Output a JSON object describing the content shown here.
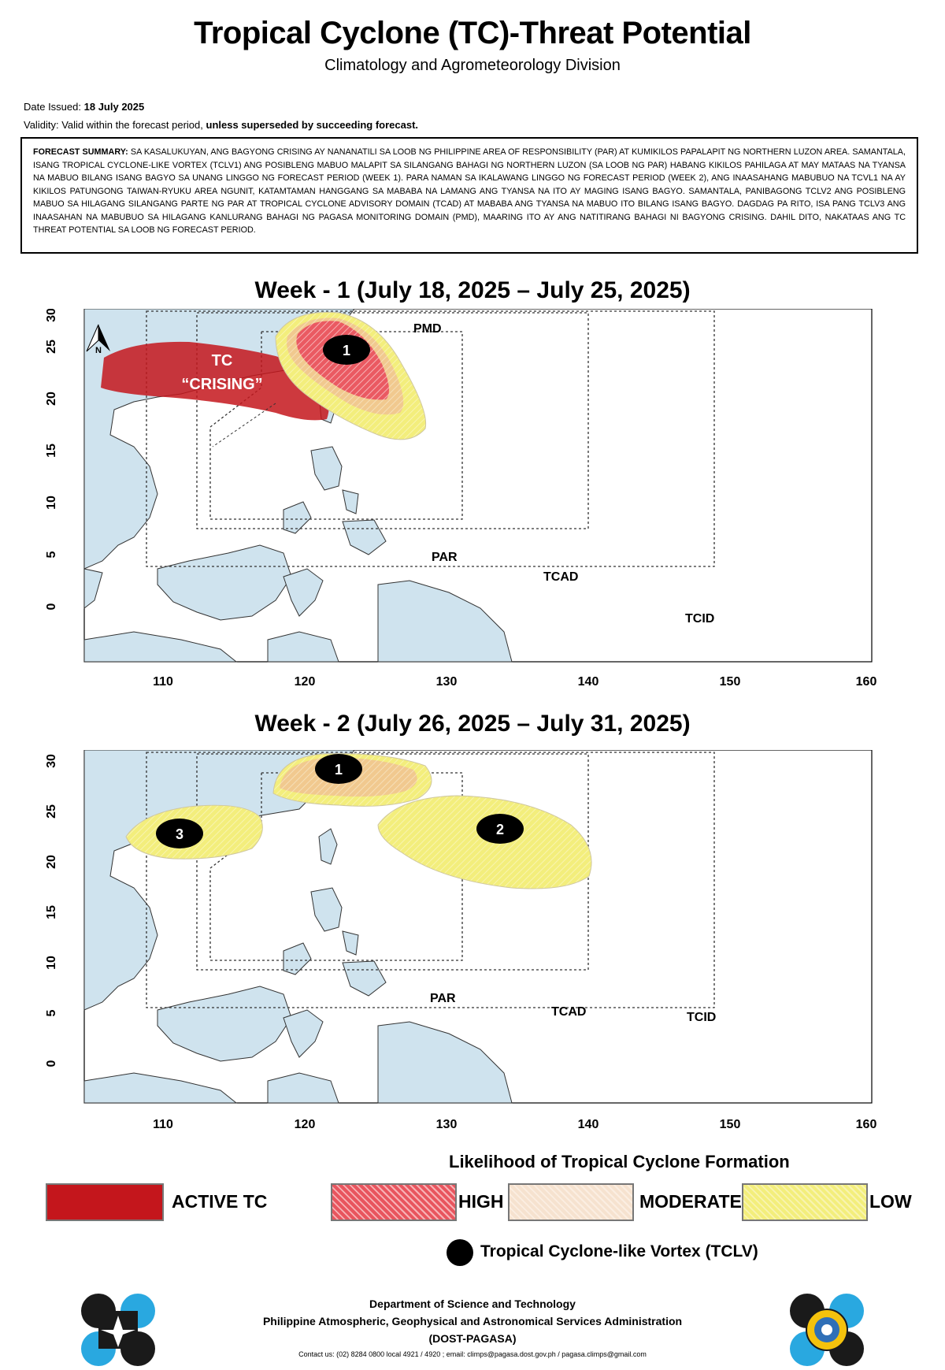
{
  "header": {
    "title": "Tropical Cyclone (TC)-Threat Potential",
    "subtitle": "Climatology and Agrometeorology Division"
  },
  "issue": {
    "date_label": "Date Issued:",
    "date_value": "18 July 2025",
    "validity_label": "Validity:",
    "validity_text": "Valid within the forecast period,",
    "validity_bold": "unless superseded by succeeding forecast."
  },
  "summary": {
    "label": "FORECAST SUMMARY:",
    "text": "SA KASALUKUYAN, ANG BAGYONG CRISING AY NANANATILI SA LOOB NG PHILIPPINE AREA OF RESPONSIBILITY (PAR) AT KUMIKILOS PAPALAPIT NG NORTHERN LUZON AREA. SAMANTALA, ISANG TROPICAL CYCLONE-LIKE VORTEX (TCLV1) ANG POSIBLENG MABUO MALAPIT SA SILANGANG BAHAGI NG NORTHERN LUZON (SA LOOB NG PAR) HABANG KIKILOS PAHILAGA AT MAY MATAAS NA TYANSA NA MABUO BILANG ISANG BAGYO SA UNANG LINGGO NG FORECAST PERIOD (WEEK 1). PARA NAMAN SA IKALAWANG LINGGO NG FORECAST PERIOD (WEEK 2), ANG INAASAHANG MABUBUO NA TCVL1 NA AY KIKILOS PATUNGONG TAIWAN-RYUKU AREA NGUNIT, KATAMTAMAN HANGGANG SA MABABA NA LAMANG ANG TYANSA NA ITO AY MAGING ISANG BAGYO. SAMANTALA, PANIBAGONG TCLV2 ANG POSIBLENG MABUO SA HILAGANG SILANGANG PARTE NG PAR AT TROPICAL CYCLONE ADVISORY DOMAIN (TCAD) AT MABABA ANG TYANSA NA MABUO ITO BILANG ISANG BAGYO. DAGDAG PA RITO, ISA PANG TCLV3 ANG INAASAHAN NA MABUBUO SA HILAGANG KANLURANG BAHAGI NG PAGASA MONITORING DOMAIN (PMD), MAARING ITO AY ANG NATITIRANG BAHAGI NI BAGYONG CRISING. DAHIL DITO, NAKATAAS ANG TC THREAT POTENTIAL SA LOOB NG FORECAST PERIOD."
  },
  "map_axes": {
    "x_ticks": [
      "110",
      "120",
      "130",
      "140",
      "150",
      "160"
    ],
    "y_ticks": [
      "0",
      "5",
      "10",
      "15",
      "20",
      "25",
      "30"
    ],
    "domains": {
      "pmd": "PMD",
      "par": "PAR",
      "tcad": "TCAD",
      "tcid": "TCID"
    },
    "north_label": "N"
  },
  "week1": {
    "title": "Week - 1 (July 18, 2025 – July 25, 2025)",
    "active_tc_label_1": "TC",
    "active_tc_label_2": "“CRISING”",
    "tclv": [
      "1"
    ]
  },
  "week2": {
    "title": "Week - 2 (July 26, 2025 – July 31, 2025)",
    "tclv": [
      "1",
      "2",
      "3"
    ]
  },
  "legend": {
    "title": "Likelihood of Tropical Cyclone Formation",
    "items": [
      {
        "label": "ACTIVE TC",
        "color": "#c4161c"
      },
      {
        "label": "HIGH",
        "color": "#e8555e"
      },
      {
        "label": "MODERATE",
        "color": "#f6e2cf"
      },
      {
        "label": "LOW",
        "color": "#f3ee7c"
      }
    ],
    "tclv_label": "Tropical Cyclone-like Vortex (TCLV)"
  },
  "footer": {
    "line1": "Department of Science and Technology",
    "line2": "Philippine Atmospheric, Geophysical and Astronomical Services Administration",
    "line3": "(DOST-PAGASA)",
    "contact": "Contact us: (02) 8284 0800 local 4921 / 4920 ; email: climps@pagasa.dost.gov.ph / pagasa.climps@gmail.com"
  },
  "colors": {
    "sea": "#ffffff",
    "land": "#cfe3ee",
    "active": "#c4161c",
    "high": "#e8555e",
    "moderate": "#f1d7a4",
    "low": "#f3ee7c"
  }
}
